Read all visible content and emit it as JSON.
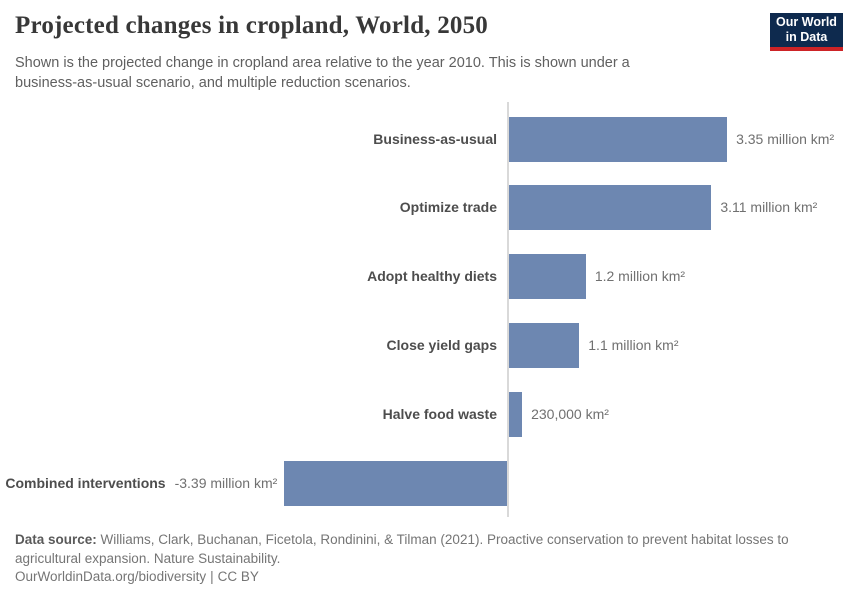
{
  "header": {
    "title": "Projected changes in cropland, World, 2050",
    "subtitle": "Shown is the projected change in cropland area relative to the year 2010. This is shown under a business-as-usual scenario, and multiple reduction scenarios."
  },
  "logo": {
    "line1": "Our World",
    "line2": "in Data"
  },
  "chart_data": {
    "type": "bar",
    "orientation": "horizontal",
    "title": "Projected changes in cropland, World, 2050",
    "unit": "million km²",
    "categories": [
      "Business-as-usual",
      "Optimize trade",
      "Adopt healthy diets",
      "Close yield gaps",
      "Halve food waste",
      "Combined interventions"
    ],
    "values": [
      3.35,
      3.11,
      1.2,
      1.1,
      0.23,
      -3.39
    ],
    "value_labels": [
      "3.35 million km²",
      "3.11 million km²",
      "1.2 million km²",
      "1.1 million km²",
      "230,000 km²",
      "-3.39 million km²"
    ],
    "baseline": 0,
    "xlim": [
      -3.39,
      3.35
    ],
    "grid": false,
    "legend": false,
    "bar_color": "#6d87b1"
  },
  "colors": {
    "bar": "#6d87b1",
    "axis_line": "#d9d9d9",
    "logo_navy": "#0e2a4e",
    "logo_red": "#cd2326"
  },
  "footer": {
    "source_label": "Data source:",
    "source_text": "Williams, Clark, Buchanan, Ficetola, Rondinini, & Tilman (2021). Proactive conservation to prevent habitat losses to agricultural expansion. Nature Sustainability.",
    "url": "OurWorldinData.org/biodiversity",
    "separator": "|",
    "license": "CC BY"
  }
}
